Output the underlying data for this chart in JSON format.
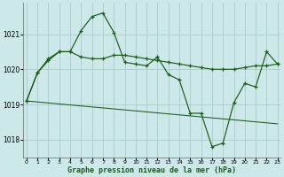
{
  "title": "Graphe pression niveau de la mer (hPa)",
  "bg_color": "#cce8e8",
  "grid_color": "#aacccc",
  "line_color": "#1a5c1a",
  "ylim": [
    1017.5,
    1021.9
  ],
  "yticks": [
    1018,
    1019,
    1020,
    1021
  ],
  "xlim": [
    -0.3,
    23.3
  ],
  "xticks": [
    0,
    1,
    2,
    3,
    4,
    5,
    6,
    7,
    8,
    9,
    10,
    11,
    12,
    13,
    14,
    15,
    16,
    17,
    18,
    19,
    20,
    21,
    22,
    23
  ],
  "series": [
    {
      "x": [
        0,
        1,
        2,
        3,
        4,
        5,
        6,
        7,
        8,
        9,
        10,
        11,
        12,
        13,
        14,
        15,
        16,
        17,
        18,
        19,
        20,
        21,
        22,
        23
      ],
      "y": [
        1019.1,
        1019.9,
        1020.25,
        1020.5,
        1020.5,
        1021.1,
        1021.5,
        1021.6,
        1021.05,
        1020.2,
        1020.15,
        1020.1,
        1020.35,
        1019.85,
        1019.7,
        1018.75,
        1018.75,
        1017.8,
        1017.9,
        1019.05,
        1019.6,
        1019.5,
        1020.5,
        1020.15
      ],
      "has_markers": true
    },
    {
      "x": [
        0,
        1,
        2,
        3,
        4,
        5,
        6,
        7,
        8,
        9,
        10,
        11,
        12,
        13,
        14,
        15,
        16,
        17,
        18,
        19,
        20,
        21,
        22,
        23
      ],
      "y": [
        1019.1,
        1019.9,
        1020.3,
        1020.5,
        1020.5,
        1020.35,
        1020.3,
        1020.3,
        1020.4,
        1020.4,
        1020.35,
        1020.3,
        1020.25,
        1020.2,
        1020.15,
        1020.1,
        1020.05,
        1020.0,
        1020.0,
        1020.0,
        1020.05,
        1020.1,
        1020.1,
        1020.15
      ],
      "has_markers": true
    },
    {
      "x": [
        0,
        23
      ],
      "y": [
        1019.1,
        1018.45
      ],
      "has_markers": false
    }
  ]
}
